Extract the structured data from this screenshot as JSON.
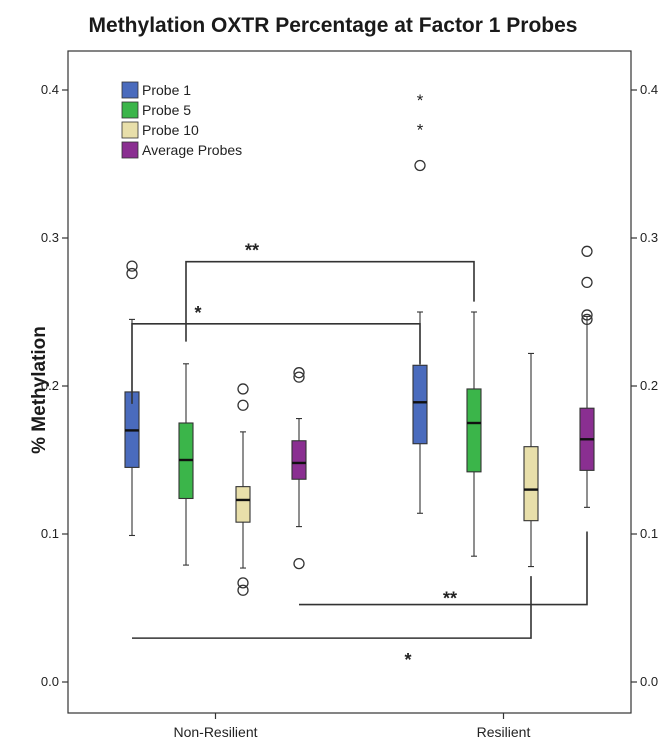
{
  "chart_data": {
    "type": "box",
    "title": "Methylation OXTR Percentage at Factor 1 Probes",
    "xlabel": "",
    "ylabel": "% Methylation",
    "ylim": [
      0.0,
      0.4
    ],
    "yticks": [
      "0.0",
      "0.1",
      "0.2",
      "0.3",
      "0.4"
    ],
    "categories": [
      "Non-Resilient",
      "Resilient"
    ],
    "legend_position": "top-left",
    "series": [
      {
        "name": "Probe 1",
        "color": "#4a6bbd",
        "boxes": [
          {
            "whisker_low": 0.099,
            "q1": 0.145,
            "median": 0.17,
            "q3": 0.196,
            "whisker_high": 0.245
          },
          {
            "whisker_low": 0.114,
            "q1": 0.161,
            "median": 0.189,
            "q3": 0.214,
            "whisker_high": 0.25
          }
        ]
      },
      {
        "name": "Probe 5",
        "color": "#3bb54a",
        "boxes": [
          {
            "whisker_low": 0.079,
            "q1": 0.124,
            "median": 0.15,
            "q3": 0.175,
            "whisker_high": 0.215
          },
          {
            "whisker_low": 0.085,
            "q1": 0.142,
            "median": 0.175,
            "q3": 0.198,
            "whisker_high": 0.25
          }
        ]
      },
      {
        "name": "Probe 10",
        "color": "#e8dfaa",
        "boxes": [
          {
            "whisker_low": 0.077,
            "q1": 0.108,
            "median": 0.123,
            "q3": 0.132,
            "whisker_high": 0.169
          },
          {
            "whisker_low": 0.078,
            "q1": 0.109,
            "median": 0.13,
            "q3": 0.159,
            "whisker_high": 0.222
          }
        ]
      },
      {
        "name": "Average Probes",
        "color": "#8a2f91",
        "boxes": [
          {
            "whisker_low": 0.105,
            "q1": 0.137,
            "median": 0.148,
            "q3": 0.163,
            "whisker_high": 0.178
          },
          {
            "whisker_low": 0.118,
            "q1": 0.143,
            "median": 0.164,
            "q3": 0.185,
            "whisker_high": 0.247
          }
        ]
      }
    ],
    "outliers": [
      {
        "category": "Non-Resilient",
        "series": "Probe 1",
        "y": 0.281,
        "marker": "circle"
      },
      {
        "category": "Non-Resilient",
        "series": "Probe 1",
        "y": 0.276,
        "marker": "circle"
      },
      {
        "category": "Non-Resilient",
        "series": "Probe 10",
        "y": 0.198,
        "marker": "circle"
      },
      {
        "category": "Non-Resilient",
        "series": "Probe 10",
        "y": 0.187,
        "marker": "circle"
      },
      {
        "category": "Non-Resilient",
        "series": "Probe 10",
        "y": 0.067,
        "marker": "circle"
      },
      {
        "category": "Non-Resilient",
        "series": "Probe 10",
        "y": 0.062,
        "marker": "circle"
      },
      {
        "category": "Non-Resilient",
        "series": "Average Probes",
        "y": 0.209,
        "marker": "circle"
      },
      {
        "category": "Non-Resilient",
        "series": "Average Probes",
        "y": 0.206,
        "marker": "circle"
      },
      {
        "category": "Non-Resilient",
        "series": "Average Probes",
        "y": 0.08,
        "marker": "circle"
      },
      {
        "category": "Resilient",
        "series": "Probe 1",
        "y": 0.394,
        "marker": "star"
      },
      {
        "category": "Resilient",
        "series": "Probe 1",
        "y": 0.374,
        "marker": "star"
      },
      {
        "category": "Resilient",
        "series": "Probe 1",
        "y": 0.349,
        "marker": "circle"
      },
      {
        "category": "Resilient",
        "series": "Average Probes",
        "y": 0.291,
        "marker": "circle"
      },
      {
        "category": "Resilient",
        "series": "Average Probes",
        "y": 0.27,
        "marker": "circle"
      },
      {
        "category": "Resilient",
        "series": "Average Probes",
        "y": 0.248,
        "marker": "circle"
      },
      {
        "category": "Resilient",
        "series": "Average Probes",
        "y": 0.245,
        "marker": "circle"
      }
    ],
    "annotations": [
      {
        "label": "**",
        "from": {
          "category": "Non-Resilient",
          "series": "Probe 5"
        },
        "to": {
          "category": "Resilient",
          "series": "Probe 5"
        },
        "y": 0.284,
        "side": "above"
      },
      {
        "label": "*",
        "from": {
          "category": "Non-Resilient",
          "series": "Probe 1"
        },
        "to": {
          "category": "Resilient",
          "series": "Probe 1"
        },
        "y": 0.242,
        "side": "above"
      },
      {
        "label": "**",
        "from": {
          "category": "Non-Resilient",
          "series": "Average Probes"
        },
        "to": {
          "category": "Resilient",
          "series": "Average Probes"
        },
        "y": 0.051,
        "side": "above"
      },
      {
        "label": "*",
        "from": {
          "category": "Non-Resilient",
          "series": "Probe 1"
        },
        "to": {
          "category": "Resilient",
          "series": "Probe 10"
        },
        "y": 0.031,
        "side": "below"
      }
    ]
  }
}
